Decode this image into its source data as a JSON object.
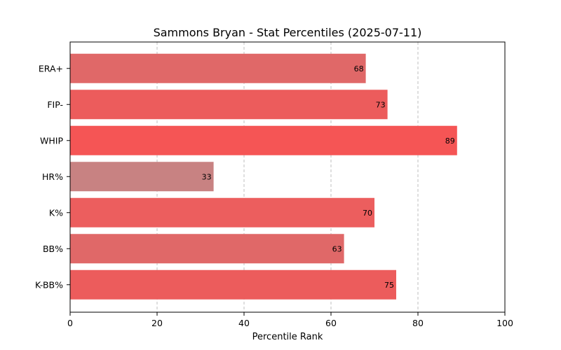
{
  "chart_data": {
    "type": "bar",
    "orientation": "horizontal",
    "title": "Sammons Bryan - Stat Percentiles (2025-07-11)",
    "xlabel": "Percentile Rank",
    "ylabel": "",
    "categories": [
      "ERA+",
      "FIP-",
      "WHIP",
      "HR%",
      "K%",
      "BB%",
      "K-BB%"
    ],
    "values": [
      68,
      73,
      89,
      33,
      70,
      63,
      75
    ],
    "bar_colors": [
      "#e06868",
      "#ec5c5c",
      "#f55555",
      "#c88282",
      "#ec5e5e",
      "#e06868",
      "#ec5c5c"
    ],
    "xlim": [
      0,
      100
    ],
    "xticks": [
      0,
      20,
      40,
      60,
      80,
      100
    ],
    "grid": "x-dashed",
    "legend": "none"
  }
}
